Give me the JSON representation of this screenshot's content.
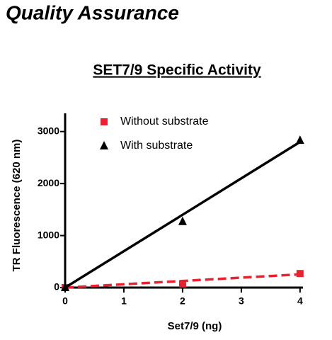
{
  "header": {
    "title": "Quality Assurance"
  },
  "chart_data": {
    "type": "scatter",
    "title": "SET7/9 Specific Activity",
    "x_label": "Set7/9 (ng)",
    "y_label": "TR Fluorescence (620 nm)",
    "x": [
      0,
      2,
      4
    ],
    "series": [
      {
        "name": "Without substrate",
        "color": "#e8232f",
        "marker": "square",
        "line_style": "dashed",
        "values": [
          0,
          70,
          270
        ],
        "fit": {
          "x": [
            0,
            4
          ],
          "values": [
            0,
            255
          ]
        }
      },
      {
        "name": "With substrate",
        "color": "#000000",
        "marker": "triangle",
        "line_style": "solid",
        "values": [
          0,
          1270,
          2830
        ],
        "fit": {
          "x": [
            0,
            4
          ],
          "values": [
            0,
            2800
          ]
        }
      }
    ],
    "xlim": [
      0,
      4.05
    ],
    "xticks": [
      0,
      1,
      2,
      3,
      4
    ],
    "ylim": [
      0,
      3350
    ],
    "yticks": [
      0,
      1000,
      2000,
      3000
    ],
    "grid": false
  }
}
